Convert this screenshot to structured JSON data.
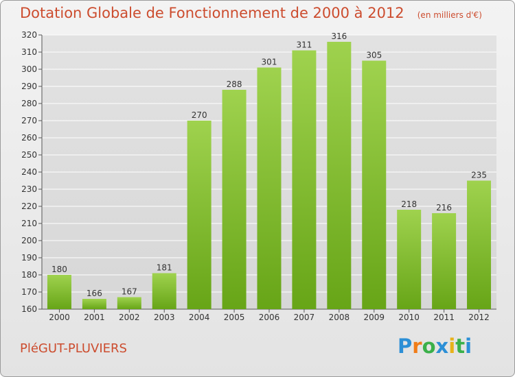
{
  "chart_data": {
    "type": "bar",
    "title": "Dotation Globale de Fonctionnement de 2000 à 2012",
    "subtitle": "(en milliers d'€)",
    "categories": [
      "2000",
      "2001",
      "2002",
      "2003",
      "2004",
      "2005",
      "2006",
      "2007",
      "2008",
      "2009",
      "2010",
      "2011",
      "2012"
    ],
    "values": [
      180,
      166,
      167,
      181,
      270,
      288,
      301,
      311,
      316,
      305,
      218,
      216,
      235
    ],
    "ylim": [
      160,
      320
    ],
    "yticks": [
      160,
      170,
      180,
      190,
      200,
      210,
      220,
      230,
      240,
      250,
      260,
      270,
      280,
      290,
      300,
      310,
      320
    ],
    "grid": true,
    "legend": "none",
    "bar_color_top": "#9fd24e",
    "bar_color_bottom": "#67a517"
  },
  "footer": {
    "commune": "PléGUT-PLUVIERS",
    "logo_letters": [
      "P",
      "r",
      "o",
      "x",
      "i",
      "t",
      "i"
    ]
  },
  "colors": {
    "title": "#cc4c2e",
    "grid": "#ffffff",
    "axis_text": "#333333"
  }
}
